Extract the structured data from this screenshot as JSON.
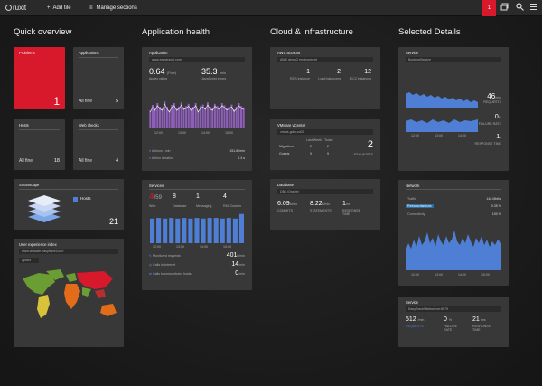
{
  "topbar": {
    "logo": "ruxit",
    "add_tile": "Add tile",
    "manage_sections": "Manage sections",
    "badge": "1",
    "add_icon": "+",
    "manage_icon": "≡"
  },
  "sections": {
    "quick": "Quick overview",
    "app": "Application health",
    "cloud": "Cloud & infrastructure",
    "selected": "Selected Details"
  },
  "quick": {
    "problems": {
      "label": "Problems",
      "value": "1"
    },
    "applications": {
      "label": "Applications",
      "status": "All fine",
      "value": "5"
    },
    "hosts": {
      "label": "Hosts",
      "status": "All fine",
      "value": "18"
    },
    "webchecks": {
      "label": "Web checks",
      "status": "All fine",
      "value": "4"
    },
    "smartscape": {
      "label": "Smartscape",
      "legend": "Hosts",
      "value": "21"
    },
    "uei": {
      "label": "User experience index",
      "url": "www.vmware.easytravel.com",
      "tag": "Apdex"
    }
  },
  "application": {
    "label": "Application",
    "url": "www.easytravel.com",
    "apdex_value": "0.64",
    "apdex_unit": "(Poor)",
    "apdex_label": "Apdex rating",
    "js_value": "35.3",
    "js_unit": "/min",
    "js_label": "JavaScript errors",
    "actions_label": "Actions / min",
    "actions_value": "151.8",
    "actions_unit": "/min",
    "duration_label": "Action duration",
    "duration_value": "0.4",
    "duration_unit": "s",
    "bars": [
      0.5,
      0.65,
      0.55,
      0.7,
      0.6,
      0.55,
      0.75,
      0.6,
      0.5,
      0.65,
      0.7,
      0.55,
      0.6,
      0.72,
      0.58,
      0.62,
      0.68,
      0.55,
      0.6,
      0.7,
      0.5,
      0.62,
      0.66,
      0.58,
      0.72,
      0.6,
      0.55,
      0.68,
      0.62,
      0.58,
      0.7,
      0.64,
      0.56,
      0.6,
      0.66,
      0.52,
      0.6,
      0.7,
      0.62,
      0.58
    ],
    "times": [
      "12:00",
      "13:00",
      "14:00",
      "15:00"
    ]
  },
  "services": {
    "label": "Services",
    "problem": "4",
    "total": "/59",
    "problem_unit": "Web",
    "db_value": "8",
    "db_label": "Database",
    "msg_value": "1",
    "msg_label": "Messaging",
    "rmi_value": "4",
    "rmi_label": "RMI Custom",
    "bars": [
      0.8,
      0.82,
      0.8,
      0.82,
      0.8,
      0.82,
      0.8,
      0.82,
      0.8,
      0.82,
      0.82,
      0.8,
      0.82,
      0.8,
      0.95
    ],
    "times": [
      "12:00",
      "13:00",
      "14:00",
      "15:00"
    ],
    "rows": [
      {
        "label": "Monitored requests",
        "value": "401",
        "unit": "k/min"
      },
      {
        "label": "Calls to Internet",
        "value": "14",
        "unit": "/min"
      },
      {
        "label": "Calls to unmonitored hosts",
        "value": "0",
        "unit": "/min"
      }
    ]
  },
  "aws": {
    "label": "AWS account",
    "env": "AWS demo2 environment",
    "stats": [
      {
        "value": "1",
        "label": "RDS instance"
      },
      {
        "value": "2",
        "label": "Load balancers"
      },
      {
        "value": "12",
        "label": "EC2 instances"
      }
    ]
  },
  "vmware": {
    "label": "VMware vCenter",
    "host": "vmwa-gdm-vc02",
    "col1": "Last Week",
    "col2": "Today",
    "migrations": "Migrations",
    "guests": "Guests",
    "m_last": "2",
    "m_today": "2",
    "g_last": "9",
    "g_today": "9",
    "right_value": "2",
    "right_label": "ESXi HOSTS"
  },
  "database": {
    "label": "Database",
    "name": "DB1 (Oracle)",
    "stats": [
      {
        "value": "6.09",
        "unit": "k/min",
        "label": "COMMITS"
      },
      {
        "value": "8.22",
        "unit": "k/min",
        "label": "STATEMENTS"
      },
      {
        "value": "1",
        "unit": "ms",
        "label": "RESPONSE TIME"
      }
    ]
  },
  "sel_service": {
    "label": "Service",
    "name": "BookingService",
    "req_value": "46",
    "req_unit": "/min",
    "req_label": "REQUESTS",
    "fail_value": "0",
    "fail_unit": "%",
    "fail_label": "FAILURE RATE",
    "resp_value": "1",
    "resp_unit": "s",
    "resp_label": "RESPONSE TIME",
    "times": [
      "12:00",
      "13:00",
      "14:00"
    ]
  },
  "network": {
    "label": "Network",
    "traffic_label": "Traffic",
    "traffic_value": "148",
    "traffic_unit": "Mbit/s",
    "retrans_label": "Retransmissions",
    "retrans_value": "0.35",
    "retrans_unit": "%",
    "conn_label": "Connectivity",
    "conn_value": "100",
    "conn_unit": "%",
    "times": [
      "12:00",
      "13:00",
      "14:00",
      "15:00"
    ]
  },
  "sel_service2": {
    "label": "Service",
    "name": "EasyTravelWebserver:8079",
    "req_value": "512",
    "req_unit": "/min",
    "req_label": "REQUESTS",
    "fail_value": "0",
    "fail_unit": "%",
    "fail_label": "FAILURE RATE",
    "resp_value": "21",
    "resp_unit": "ms",
    "resp_label": "RESPONSE TIME"
  },
  "colors": {
    "problem": "#d7192b",
    "purple": "#8e5fb8",
    "blue": "#4f7fd4",
    "green": "#6a9e35",
    "bg": "#1a1a1a"
  }
}
